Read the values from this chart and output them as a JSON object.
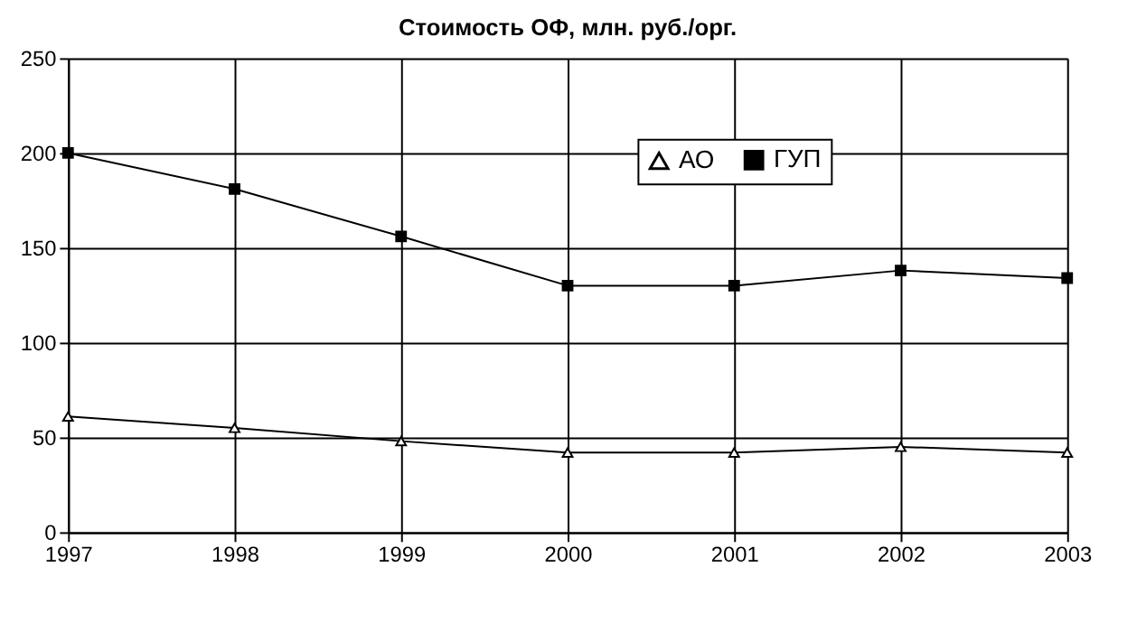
{
  "chart_data": {
    "type": "line",
    "title": "Стоимость ОФ, млн. руб./орг.",
    "x": [
      1997,
      1998,
      1999,
      2000,
      2001,
      2002,
      2003
    ],
    "series": [
      {
        "name": "АО",
        "color": "#000000",
        "marker": "triangle",
        "values": [
          61,
          55,
          48,
          42,
          42,
          45,
          42
        ]
      },
      {
        "name": "ГУП",
        "color": "#000000",
        "marker": "square",
        "values": [
          200,
          181,
          156,
          130,
          130,
          138,
          134
        ]
      }
    ],
    "xlim": [
      1997,
      2003
    ],
    "xticks": [
      1997,
      1998,
      1999,
      2000,
      2001,
      2002,
      2003
    ],
    "ylim": [
      0,
      250
    ],
    "yticks": [
      0,
      50,
      100,
      150,
      200,
      250
    ],
    "grid": true,
    "legend": "top right",
    "line_style": "solid"
  }
}
